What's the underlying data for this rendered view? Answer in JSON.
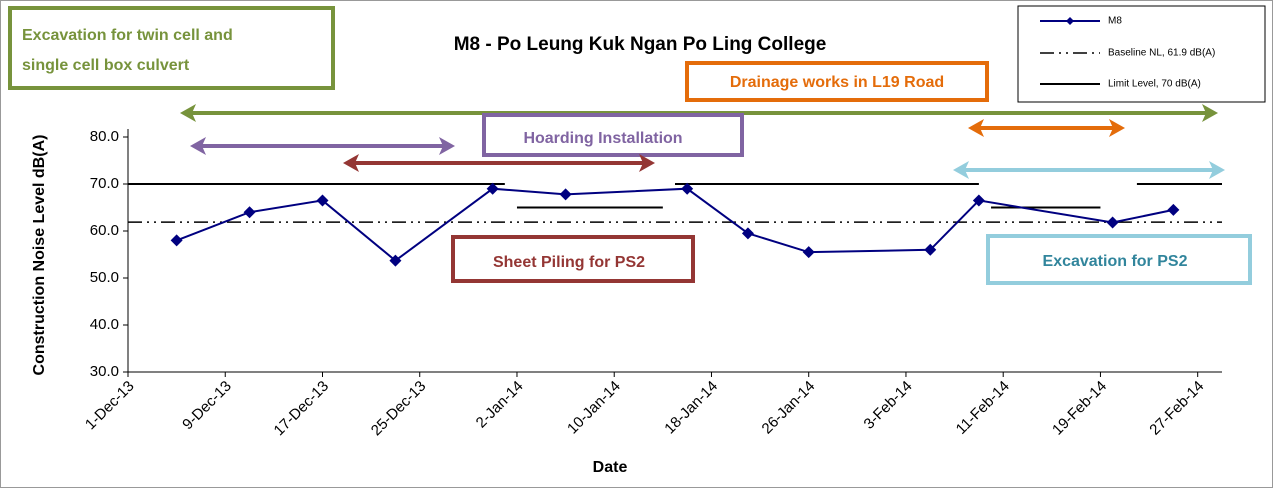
{
  "chart_data": {
    "type": "line",
    "title": "M8 - Po Leung Kuk Ngan Po Ling College",
    "xlabel": "Date",
    "ylabel": "Construction Noise Level  dB(A)",
    "xlim": [
      "2013-12-01",
      "2014-03-01"
    ],
    "xticks": [
      {
        "value": "2013-12-01",
        "label": "1-Dec-13"
      },
      {
        "value": "2013-12-09",
        "label": "9-Dec-13"
      },
      {
        "value": "2013-12-17",
        "label": "17-Dec-13"
      },
      {
        "value": "2013-12-25",
        "label": "25-Dec-13"
      },
      {
        "value": "2014-01-02",
        "label": "2-Jan-14"
      },
      {
        "value": "2014-01-10",
        "label": "10-Jan-14"
      },
      {
        "value": "2014-01-18",
        "label": "18-Jan-14"
      },
      {
        "value": "2014-01-26",
        "label": "26-Jan-14"
      },
      {
        "value": "2014-02-03",
        "label": "3-Feb-14"
      },
      {
        "value": "2014-02-11",
        "label": "11-Feb-14"
      },
      {
        "value": "2014-02-19",
        "label": "19-Feb-14"
      },
      {
        "value": "2014-02-27",
        "label": "27-Feb-14"
      }
    ],
    "ylim": [
      30,
      80
    ],
    "yticks": [
      {
        "value": 30,
        "label": "30.0"
      },
      {
        "value": 40,
        "label": "40.0"
      },
      {
        "value": 50,
        "label": "50.0"
      },
      {
        "value": 60,
        "label": "60.0"
      },
      {
        "value": 70,
        "label": "70.0"
      },
      {
        "value": 80,
        "label": "80.0"
      }
    ],
    "series": [
      {
        "name": "M8",
        "color": "#000080",
        "x": [
          "2013-12-05",
          "2013-12-11",
          "2013-12-17",
          "2013-12-23",
          "2013-12-31",
          "2014-01-06",
          "2014-01-16",
          "2014-01-21",
          "2014-01-26",
          "2014-02-05",
          "2014-02-09",
          "2014-02-20",
          "2014-02-25"
        ],
        "values": [
          58.0,
          64.0,
          66.5,
          53.7,
          69.0,
          67.8,
          69.0,
          59.5,
          55.5,
          56.0,
          66.5,
          61.8,
          64.5
        ]
      }
    ],
    "baseline": {
      "name": "Baseline NL, 61.9 dB(A)",
      "value": 61.9,
      "color": "#000000"
    },
    "limit": {
      "name": "Limit Level, 70 dB(A)",
      "color": "#000000",
      "segments": [
        {
          "x": [
            "2013-12-01",
            "2014-01-01"
          ],
          "value": 70
        },
        {
          "x": [
            "2014-01-15",
            "2014-02-09"
          ],
          "value": 70
        },
        {
          "x": [
            "2014-02-22",
            "2014-03-01"
          ],
          "value": 70
        },
        {
          "x": [
            "2014-01-02",
            "2014-01-14"
          ],
          "value": 65
        },
        {
          "x": [
            "2014-02-10",
            "2014-02-19"
          ],
          "value": 65
        }
      ]
    },
    "annotations": [
      {
        "lines": [
          "Excavation for twin cell and",
          "single cell box culvert"
        ],
        "color": "#77933c"
      },
      {
        "lines": [
          "Drainage works in L19 Road"
        ],
        "color": "#e46c0a"
      },
      {
        "lines": [
          "Hoarding Installation"
        ],
        "color": "#8064a2"
      },
      {
        "lines": [
          "Sheet Piling for PS2"
        ],
        "color": "#943634"
      },
      {
        "lines": [
          "Excavation for PS2"
        ],
        "color": "#31859c",
        "border": "#93cddd"
      }
    ]
  }
}
